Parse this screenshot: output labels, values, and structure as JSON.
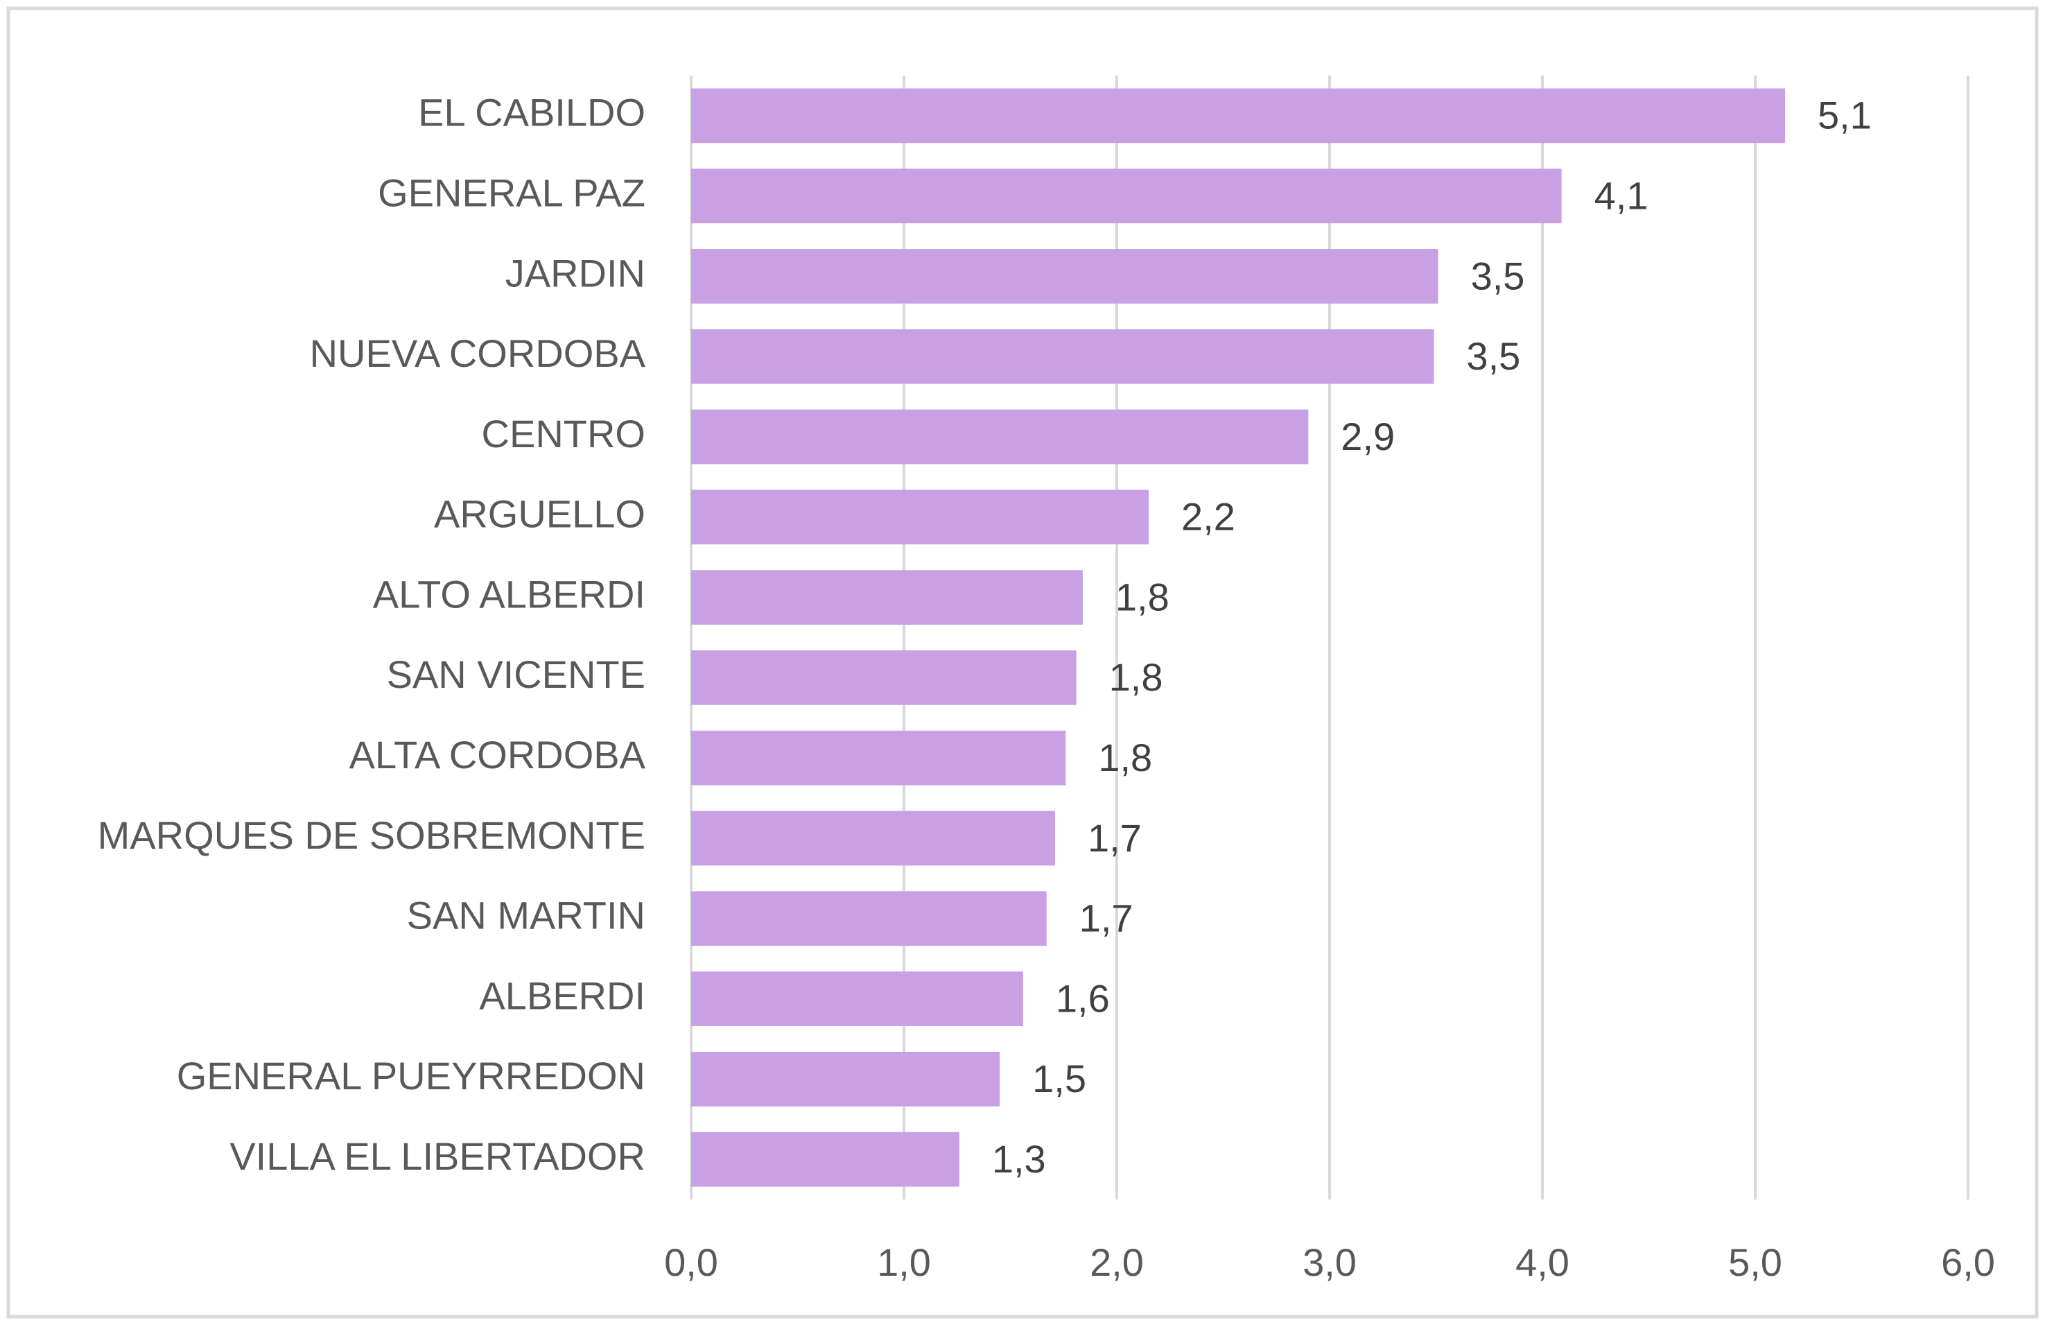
{
  "chart_data": {
    "type": "bar",
    "orientation": "horizontal",
    "categories": [
      "EL CABILDO",
      "GENERAL PAZ",
      "JARDIN",
      "NUEVA CORDOBA",
      "CENTRO",
      "ARGUELLO",
      "ALTO ALBERDI",
      "SAN VICENTE",
      "ALTA CORDOBA",
      "MARQUES DE SOBREMONTE",
      "SAN MARTIN",
      "ALBERDI",
      "GENERAL PUEYRREDON",
      "VILLA EL LIBERTADOR"
    ],
    "values": [
      5.14,
      4.09,
      3.51,
      3.49,
      2.9,
      2.15,
      1.84,
      1.81,
      1.76,
      1.71,
      1.67,
      1.56,
      1.45,
      1.26
    ],
    "value_labels": [
      "5,1",
      "4,1",
      "3,5",
      "3,5",
      "2,9",
      "2,2",
      "1,8",
      "1,8",
      "1,8",
      "1,7",
      "1,7",
      "1,6",
      "1,5",
      "1,3"
    ],
    "color": "#c8a0e3",
    "xlim": [
      0,
      6
    ],
    "xticks": [
      {
        "value": 0,
        "label": "0,0"
      },
      {
        "value": 1,
        "label": "1,0"
      },
      {
        "value": 2,
        "label": "2,0"
      },
      {
        "value": 3,
        "label": "3,0"
      },
      {
        "value": 4,
        "label": "4,0"
      },
      {
        "value": 5,
        "label": "5,0"
      },
      {
        "value": 6,
        "label": "6,0"
      }
    ],
    "grid": true
  }
}
